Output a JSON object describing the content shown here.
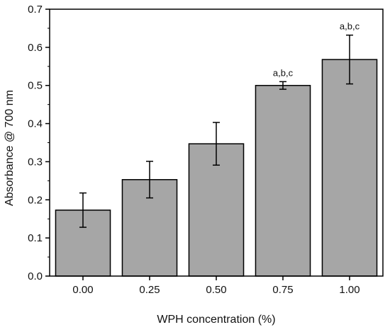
{
  "chart_data": {
    "type": "bar",
    "title": "",
    "xlabel": "WPH concentration (%)",
    "ylabel": "Absorbance @ 700 nm",
    "categories": [
      "0.00",
      "0.25",
      "0.50",
      "0.75",
      "1.00"
    ],
    "values": [
      0.173,
      0.253,
      0.347,
      0.5,
      0.568
    ],
    "errors": [
      0.045,
      0.048,
      0.056,
      0.01,
      0.064
    ],
    "annotations": [
      "",
      "",
      "",
      "a,b,c",
      "a,b,c"
    ],
    "ylim": [
      0,
      0.7
    ],
    "yticks": [
      "0.0",
      "0.1",
      "0.2",
      "0.3",
      "0.4",
      "0.5",
      "0.6",
      "0.7"
    ],
    "grid": false,
    "colors": {
      "bar": "#a6a6a6",
      "edge": "#000000",
      "axis": "#000000"
    }
  }
}
